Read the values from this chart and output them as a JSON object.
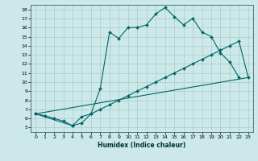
{
  "xlabel": "Humidex (Indice chaleur)",
  "background_color": "#cce8e8",
  "grid_color": "#aacccc",
  "line_color": "#006666",
  "xlim": [
    -0.5,
    23.5
  ],
  "ylim": [
    4.5,
    18.5
  ],
  "xticks": [
    0,
    1,
    2,
    3,
    4,
    5,
    6,
    7,
    8,
    9,
    10,
    11,
    12,
    13,
    14,
    15,
    16,
    17,
    18,
    19,
    20,
    21,
    22,
    23
  ],
  "yticks": [
    5,
    6,
    7,
    8,
    9,
    10,
    11,
    12,
    13,
    14,
    15,
    16,
    17,
    18
  ],
  "line1_x": [
    0,
    1,
    2,
    3,
    4,
    5,
    6,
    7,
    8,
    9,
    10,
    11,
    12,
    13,
    14,
    15,
    16,
    17,
    18,
    19,
    20,
    21,
    22
  ],
  "line1_y": [
    6.5,
    6.3,
    6.0,
    5.7,
    5.2,
    6.2,
    6.5,
    9.3,
    15.5,
    14.8,
    16.0,
    16.0,
    16.3,
    17.5,
    18.2,
    17.2,
    16.3,
    17.0,
    15.5,
    15.0,
    13.2,
    12.2,
    10.5
  ],
  "line2_x": [
    0,
    4,
    5,
    6,
    7,
    8,
    9,
    10,
    11,
    12,
    13,
    14,
    15,
    16,
    17,
    18,
    19,
    20,
    21,
    22,
    23
  ],
  "line2_y": [
    6.5,
    5.2,
    5.5,
    6.5,
    7.0,
    7.5,
    8.0,
    8.5,
    9.0,
    9.5,
    10.0,
    10.5,
    11.0,
    11.5,
    12.0,
    12.5,
    13.0,
    13.5,
    14.0,
    14.5,
    10.5
  ],
  "line3_x": [
    0,
    23
  ],
  "line3_y": [
    6.5,
    10.5
  ]
}
